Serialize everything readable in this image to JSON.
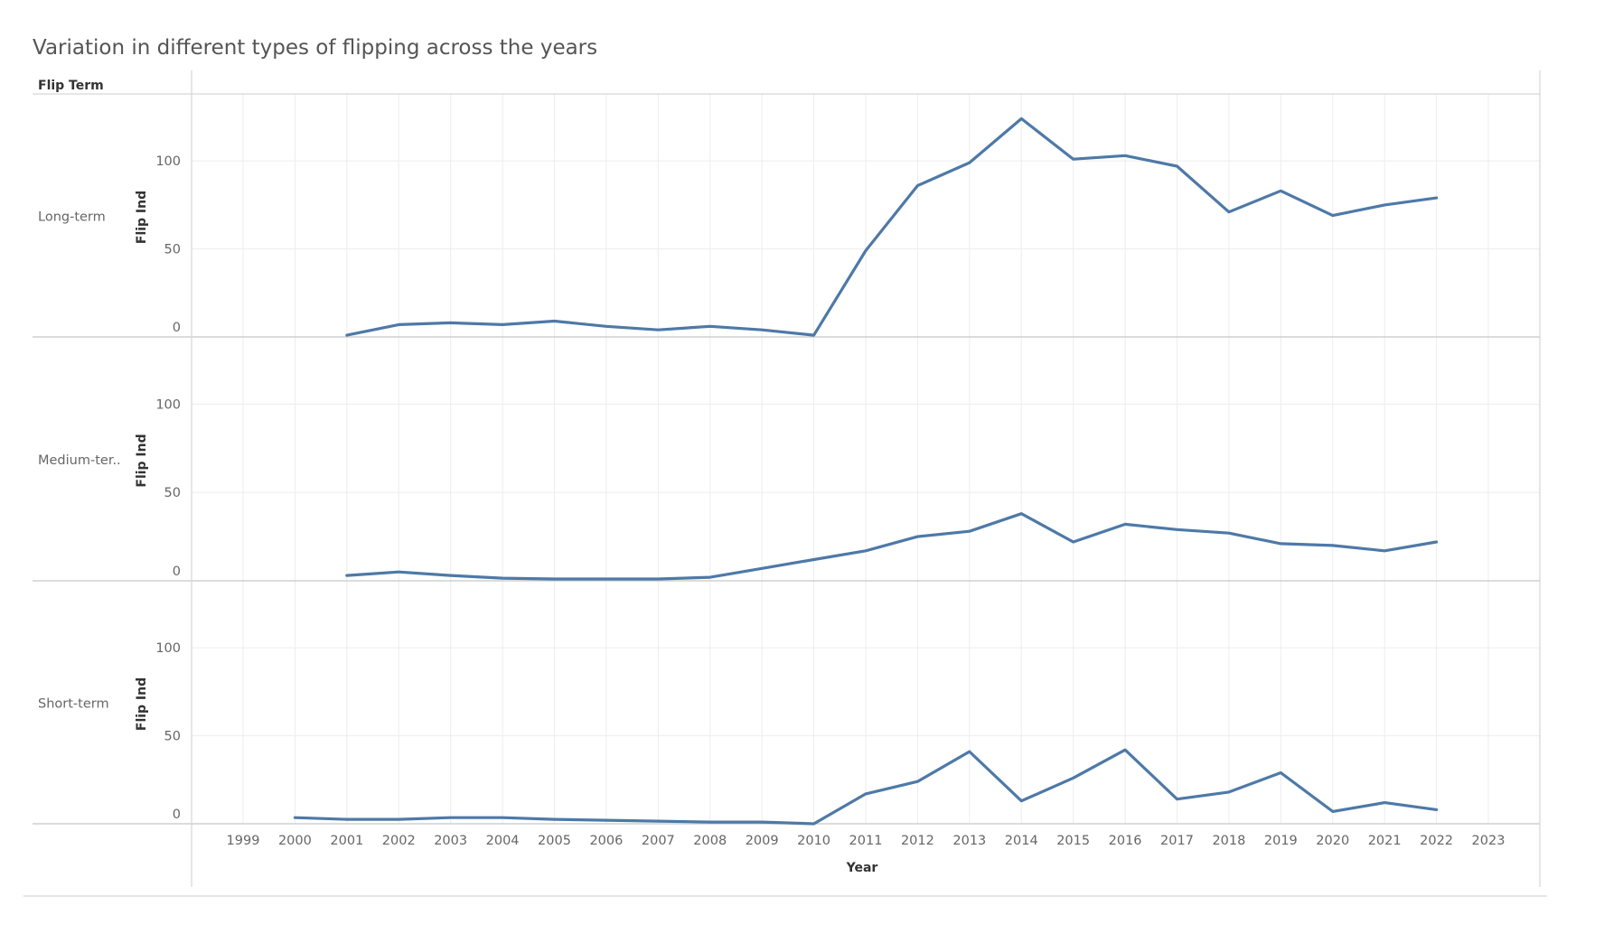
{
  "title": "Variation in different types of flipping across the years",
  "header": {
    "row_field": "Flip Term"
  },
  "colors": {
    "line": "#4e79a7"
  },
  "chart_data": {
    "type": "line",
    "title": "Variation in different types of flipping across the years",
    "xlabel": "Year",
    "ylabel": "Flip Ind",
    "x_ticks": [
      "1999",
      "2000",
      "2001",
      "2002",
      "2003",
      "2004",
      "2005",
      "2006",
      "2007",
      "2008",
      "2009",
      "2010",
      "2011",
      "2012",
      "2013",
      "2014",
      "2015",
      "2016",
      "2017",
      "2018",
      "2019",
      "2020",
      "2021",
      "2022",
      "2023"
    ],
    "xlim": [
      1999,
      2023
    ],
    "y_ticks": [
      "0",
      "50",
      "100"
    ],
    "ylim": [
      0,
      135
    ],
    "grid": true,
    "panels": [
      {
        "label": "Long-term",
        "x": [
          2001,
          2002,
          2003,
          2004,
          2005,
          2006,
          2007,
          2008,
          2009,
          2010,
          2011,
          2012,
          2013,
          2014,
          2015,
          2016,
          2017,
          2018,
          2019,
          2020,
          2021,
          2022
        ],
        "y": [
          1,
          7,
          8,
          7,
          9,
          6,
          4,
          6,
          4,
          1,
          49,
          86,
          99,
          124,
          101,
          103,
          97,
          71,
          83,
          69,
          75,
          79
        ]
      },
      {
        "label": "Medium-ter..",
        "x": [
          2001,
          2002,
          2003,
          2004,
          2005,
          2006,
          2007,
          2008,
          2009,
          2010,
          2011,
          2012,
          2013,
          2014,
          2015,
          2016,
          2017,
          2018,
          2019,
          2020,
          2021,
          2022
        ],
        "y": [
          3,
          5,
          3,
          1.5,
          1,
          1,
          1,
          2,
          7,
          12,
          17,
          25,
          28,
          38,
          22,
          32,
          29,
          27,
          21,
          20,
          17,
          22
        ]
      },
      {
        "label": "Short-term",
        "x": [
          2000,
          2001,
          2002,
          2003,
          2004,
          2005,
          2006,
          2007,
          2008,
          2009,
          2010,
          2011,
          2012,
          2013,
          2014,
          2015,
          2016,
          2017,
          2018,
          2019,
          2020,
          2021,
          2022
        ],
        "y": [
          3.5,
          2.5,
          2.5,
          3.5,
          3.5,
          2.5,
          2,
          1.5,
          1,
          1,
          0,
          17,
          24,
          41,
          13,
          26,
          42,
          14,
          18,
          29,
          7,
          12,
          8
        ]
      }
    ]
  }
}
